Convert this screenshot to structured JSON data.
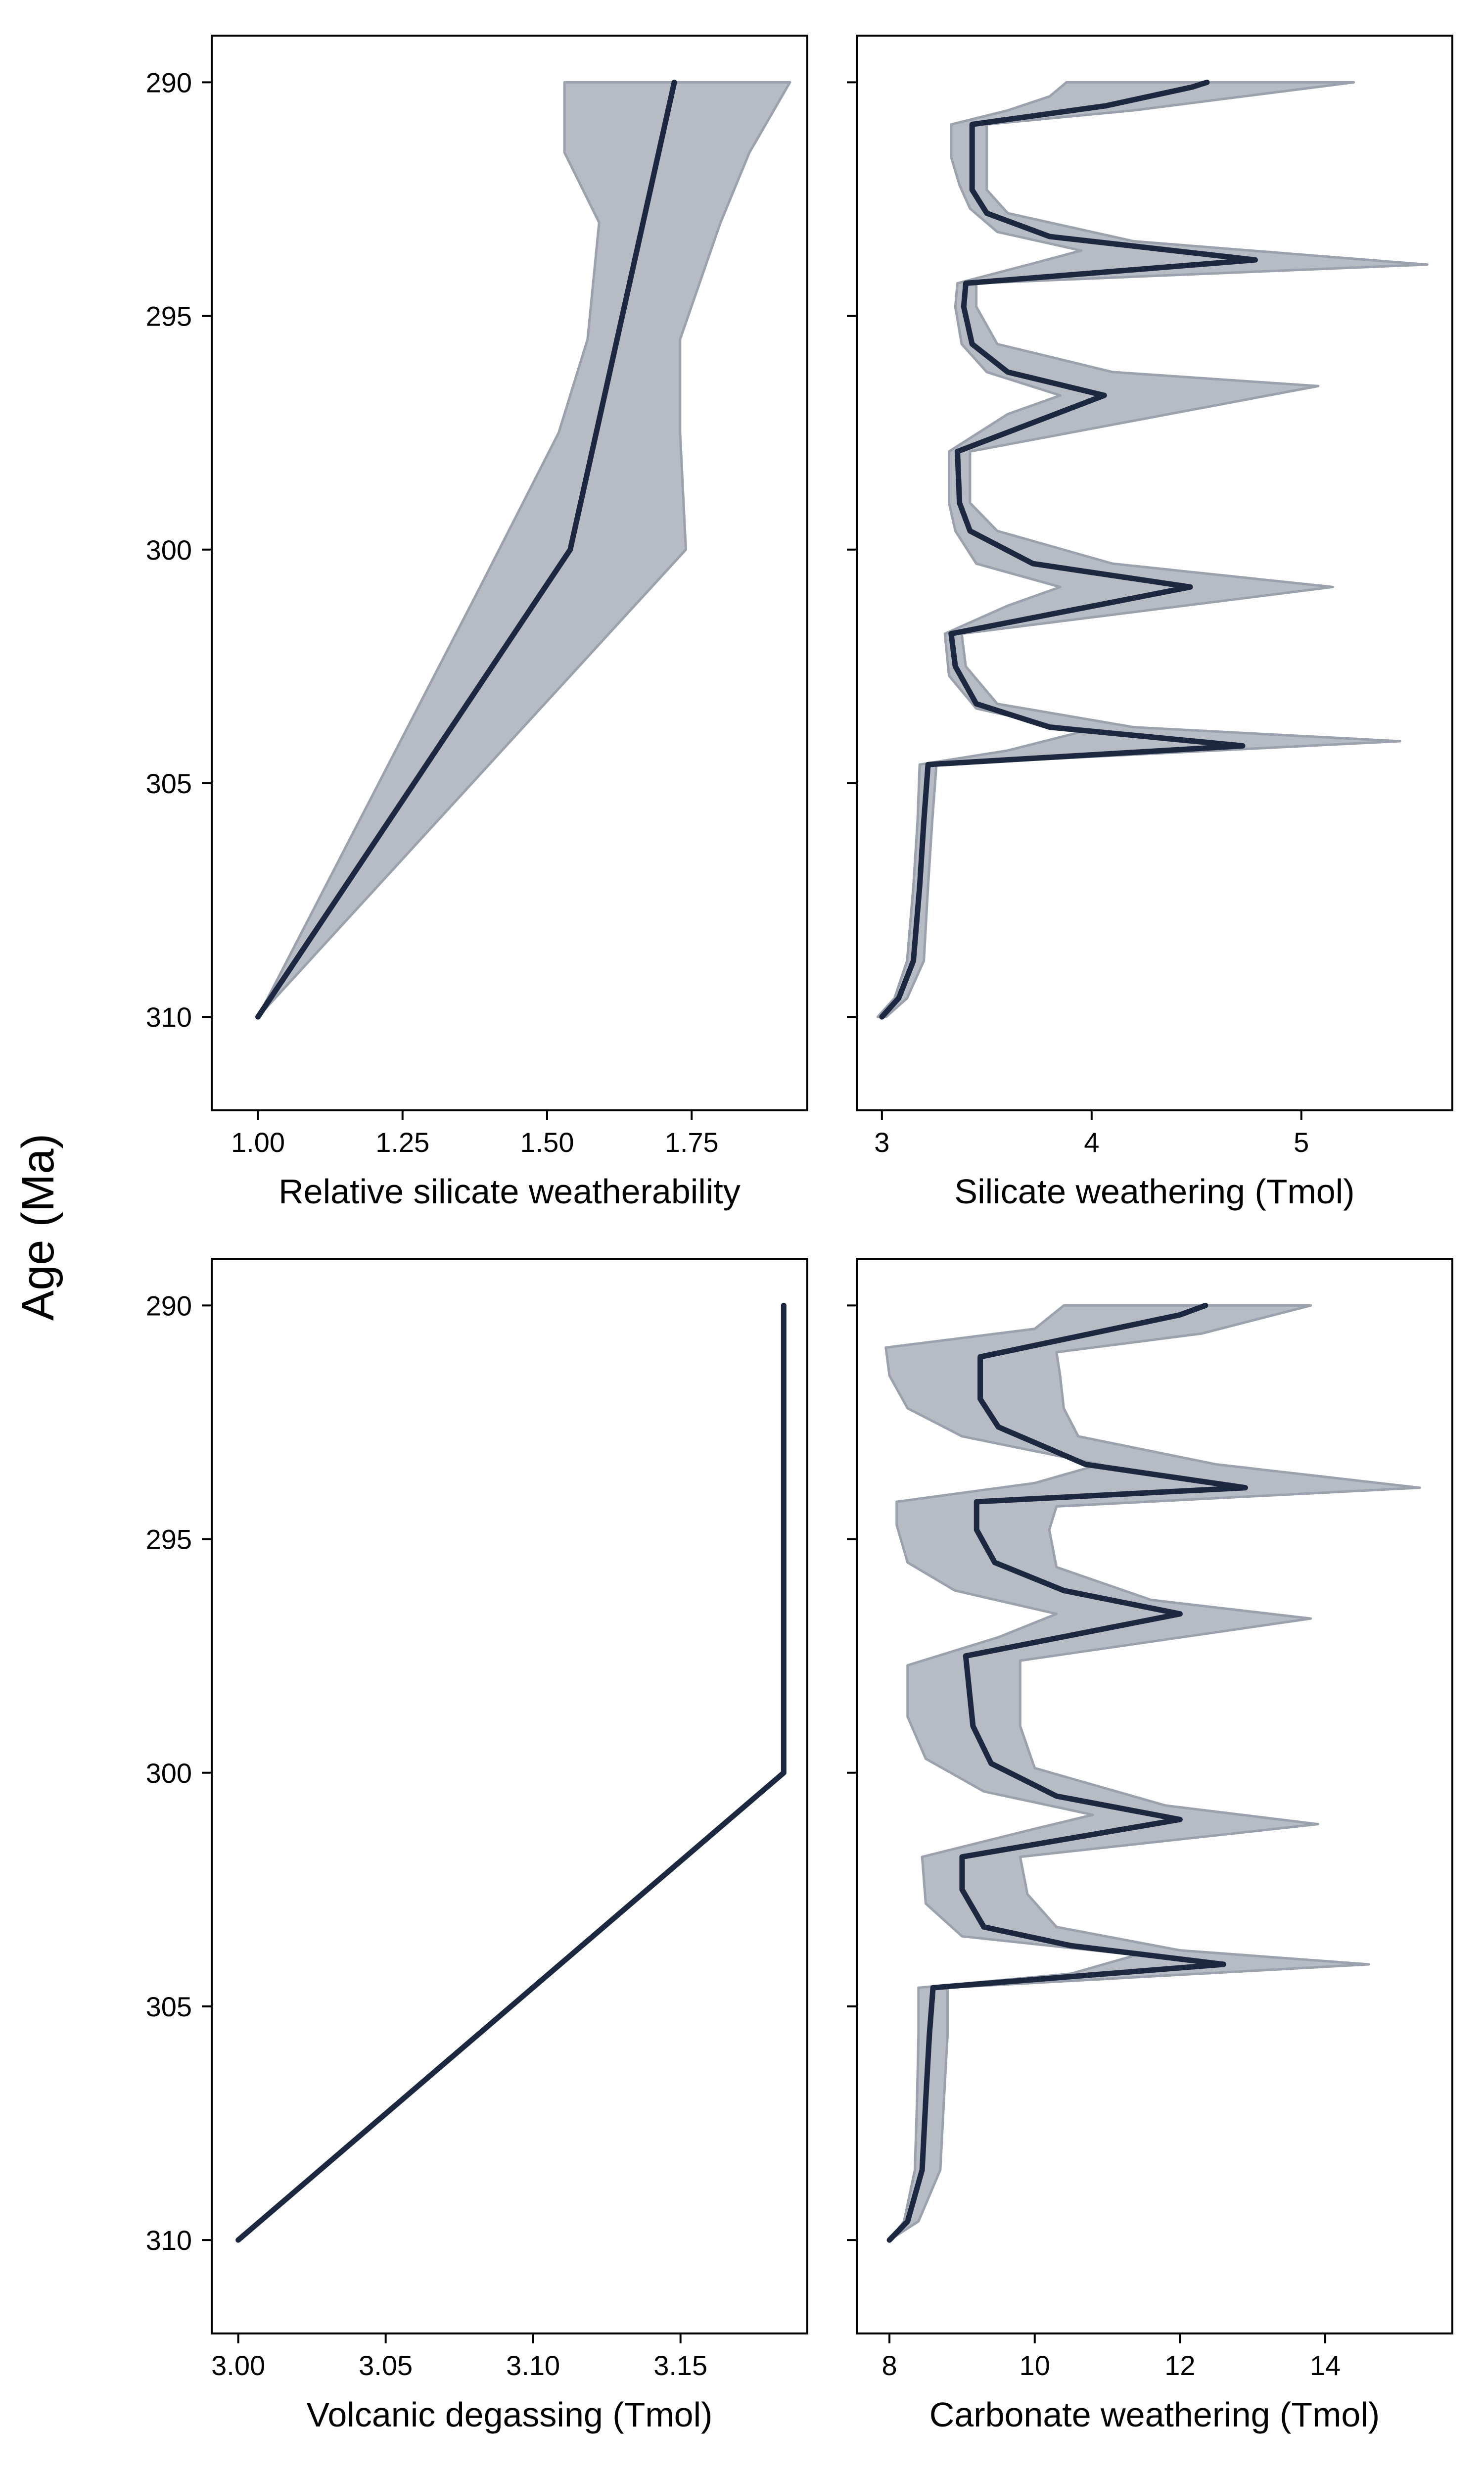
{
  "figure": {
    "shared_ylabel": "Age (Ma)",
    "colors": {
      "line": "#1c2840",
      "band_fill": "#b6bbc4",
      "band_edge": "#9ba1ad",
      "axes": "#000000"
    }
  },
  "chart_data": [
    {
      "type": "line",
      "id": "relative-silicate-weatherability",
      "title": "",
      "xlabel": "Relative silicate weatherability",
      "ylabel": "",
      "xlim": [
        0.92,
        1.95
      ],
      "ylim": [
        312,
        289
      ],
      "xticks": [
        1.0,
        1.25,
        1.5,
        1.75
      ],
      "xtick_labels": [
        "1.00",
        "1.25",
        "1.50",
        "1.75"
      ],
      "yticks": [
        290,
        295,
        300,
        305,
        310
      ],
      "ytick_labels": [
        "290",
        "295",
        "300",
        "305",
        "310"
      ],
      "grid": false,
      "series": [
        {
          "role": "median",
          "points": [
            [
              1.0,
              310
            ],
            [
              1.54,
              300
            ],
            [
              1.72,
              290
            ]
          ]
        },
        {
          "role": "band-lower",
          "points": [
            [
              1.0,
              310
            ],
            [
              1.38,
              300.9
            ],
            [
              1.52,
              297.5
            ],
            [
              1.57,
              295.5
            ],
            [
              1.59,
              293
            ],
            [
              1.53,
              291.5
            ],
            [
              1.53,
              290
            ]
          ]
        },
        {
          "role": "band-upper",
          "points": [
            [
              1.0,
              310
            ],
            [
              1.74,
              300
            ],
            [
              1.73,
              297.5
            ],
            [
              1.73,
              295.5
            ],
            [
              1.8,
              293
            ],
            [
              1.85,
              291.5
            ],
            [
              1.92,
              290
            ]
          ]
        }
      ]
    },
    {
      "type": "line",
      "id": "silicate-weathering",
      "title": "",
      "xlabel": "Silicate weathering (Tmol)",
      "ylabel": "",
      "xlim": [
        2.88,
        5.72
      ],
      "ylim": [
        312,
        289
      ],
      "xticks": [
        3,
        4,
        5
      ],
      "xtick_labels": [
        "3",
        "4",
        "5"
      ],
      "yticks": [
        290,
        295,
        300,
        305,
        310
      ],
      "ytick_labels": [
        "290",
        "295",
        "300",
        "305",
        "310"
      ],
      "grid": false,
      "series": [
        {
          "role": "median",
          "points": [
            [
              3.0,
              310
            ],
            [
              3.08,
              309.6
            ],
            [
              3.15,
              308.8
            ],
            [
              3.18,
              307.2
            ],
            [
              3.2,
              305.8
            ],
            [
              3.22,
              304.6
            ],
            [
              4.72,
              304.2
            ],
            [
              3.8,
              303.8
            ],
            [
              3.45,
              303.3
            ],
            [
              3.35,
              302.5
            ],
            [
              3.33,
              301.8
            ],
            [
              4.47,
              300.8
            ],
            [
              3.72,
              300.3
            ],
            [
              3.42,
              299.6
            ],
            [
              3.37,
              299
            ],
            [
              3.36,
              297.9
            ],
            [
              4.06,
              296.7
            ],
            [
              3.6,
              296.2
            ],
            [
              3.43,
              295.6
            ],
            [
              3.39,
              294.8
            ],
            [
              3.4,
              294.3
            ],
            [
              4.78,
              293.8
            ],
            [
              3.8,
              293.3
            ],
            [
              3.5,
              292.8
            ],
            [
              3.43,
              292.3
            ],
            [
              3.43,
              291.8
            ],
            [
              3.43,
              290.9
            ],
            [
              4.07,
              290.5
            ],
            [
              4.48,
              290.1
            ],
            [
              4.55,
              290
            ]
          ]
        },
        {
          "role": "band-lower",
          "points": [
            [
              2.98,
              310
            ],
            [
              3.06,
              309.6
            ],
            [
              3.12,
              308.8
            ],
            [
              3.15,
              307.2
            ],
            [
              3.17,
              305.8
            ],
            [
              3.18,
              304.6
            ],
            [
              3.6,
              304.3
            ],
            [
              3.95,
              303.9
            ],
            [
              3.45,
              303.4
            ],
            [
              3.32,
              302.7
            ],
            [
              3.3,
              301.8
            ],
            [
              3.6,
              301.2
            ],
            [
              3.85,
              300.8
            ],
            [
              3.45,
              300.3
            ],
            [
              3.35,
              299.6
            ],
            [
              3.32,
              299
            ],
            [
              3.32,
              297.9
            ],
            [
              3.6,
              297.1
            ],
            [
              3.85,
              296.7
            ],
            [
              3.5,
              296.2
            ],
            [
              3.38,
              295.6
            ],
            [
              3.35,
              294.8
            ],
            [
              3.36,
              294.3
            ],
            [
              3.7,
              293.9
            ],
            [
              3.95,
              293.6
            ],
            [
              3.55,
              293.2
            ],
            [
              3.42,
              292.7
            ],
            [
              3.37,
              292.2
            ],
            [
              3.33,
              291.6
            ],
            [
              3.33,
              290.9
            ],
            [
              3.6,
              290.6
            ],
            [
              3.8,
              290.3
            ],
            [
              3.88,
              290
            ]
          ]
        },
        {
          "role": "band-upper",
          "points": [
            [
              3.02,
              310
            ],
            [
              3.12,
              309.6
            ],
            [
              3.2,
              308.8
            ],
            [
              3.22,
              307.2
            ],
            [
              3.24,
              305.8
            ],
            [
              3.26,
              304.6
            ],
            [
              5.47,
              304.1
            ],
            [
              4.2,
              303.8
            ],
            [
              3.55,
              303.3
            ],
            [
              3.4,
              302.5
            ],
            [
              3.38,
              301.8
            ],
            [
              5.15,
              300.8
            ],
            [
              4.1,
              300.3
            ],
            [
              3.55,
              299.6
            ],
            [
              3.42,
              299
            ],
            [
              3.42,
              297.9
            ],
            [
              5.08,
              296.5
            ],
            [
              4.1,
              296.2
            ],
            [
              3.55,
              295.6
            ],
            [
              3.45,
              294.8
            ],
            [
              3.45,
              294.3
            ],
            [
              5.6,
              293.9
            ],
            [
              4.2,
              293.4
            ],
            [
              3.6,
              292.8
            ],
            [
              3.5,
              292.3
            ],
            [
              3.5,
              291.8
            ],
            [
              3.5,
              290.9
            ],
            [
              4.2,
              290.6
            ],
            [
              5.25,
              290
            ],
            [
              4.42,
              290
            ]
          ]
        }
      ]
    },
    {
      "type": "line",
      "id": "volcanic-degassing",
      "title": "",
      "xlabel": "Volcanic degassing (Tmol)",
      "ylabel": "",
      "xlim": [
        2.991,
        3.193
      ],
      "ylim": [
        312,
        289
      ],
      "xticks": [
        3.0,
        3.05,
        3.1,
        3.15
      ],
      "xtick_labels": [
        "3.00",
        "3.05",
        "3.10",
        "3.15"
      ],
      "yticks": [
        290,
        295,
        300,
        305,
        310
      ],
      "ytick_labels": [
        "290",
        "295",
        "300",
        "305",
        "310"
      ],
      "grid": false,
      "series": [
        {
          "role": "median",
          "points": [
            [
              3.0,
              310
            ],
            [
              3.185,
              300
            ],
            [
              3.185,
              290
            ]
          ]
        }
      ]
    },
    {
      "type": "line",
      "id": "carbonate-weathering",
      "title": "",
      "xlabel": "Carbonate weathering (Tmol)",
      "ylabel": "",
      "xlim": [
        7.55,
        15.75
      ],
      "ylim": [
        312,
        289
      ],
      "xticks": [
        8,
        10,
        12,
        14
      ],
      "xtick_labels": [
        "8",
        "10",
        "12",
        "14"
      ],
      "yticks": [
        290,
        295,
        300,
        305,
        310
      ],
      "ytick_labels": [
        "290",
        "295",
        "300",
        "305",
        "310"
      ],
      "grid": false,
      "series": [
        {
          "role": "median",
          "points": [
            [
              8.0,
              310
            ],
            [
              8.25,
              309.6
            ],
            [
              8.45,
              308.5
            ],
            [
              8.5,
              307
            ],
            [
              8.55,
              305.6
            ],
            [
              8.6,
              304.6
            ],
            [
              12.6,
              304.1
            ],
            [
              10.5,
              303.7
            ],
            [
              9.3,
              303.3
            ],
            [
              9.0,
              302.5
            ],
            [
              9.0,
              301.8
            ],
            [
              12.0,
              301
            ],
            [
              10.3,
              300.5
            ],
            [
              9.4,
              299.8
            ],
            [
              9.15,
              299
            ],
            [
              9.05,
              297.5
            ],
            [
              12.0,
              296.6
            ],
            [
              10.4,
              296.1
            ],
            [
              9.45,
              295.5
            ],
            [
              9.2,
              294.8
            ],
            [
              9.2,
              294.2
            ],
            [
              12.9,
              293.9
            ],
            [
              10.7,
              293.4
            ],
            [
              9.5,
              292.6
            ],
            [
              9.25,
              292
            ],
            [
              9.25,
              291.5
            ],
            [
              9.25,
              291.1
            ],
            [
              12.0,
              290.2
            ],
            [
              12.35,
              290
            ]
          ]
        },
        {
          "role": "band-lower",
          "points": [
            [
              8.0,
              310
            ],
            [
              8.2,
              309.6
            ],
            [
              8.35,
              308.5
            ],
            [
              8.38,
              307
            ],
            [
              8.4,
              305.6
            ],
            [
              8.4,
              304.6
            ],
            [
              10.5,
              304.3
            ],
            [
              11.4,
              303.9
            ],
            [
              9.0,
              303.5
            ],
            [
              8.5,
              302.8
            ],
            [
              8.45,
              301.8
            ],
            [
              10.0,
              301.2
            ],
            [
              10.8,
              300.9
            ],
            [
              9.3,
              300.4
            ],
            [
              8.5,
              299.7
            ],
            [
              8.25,
              298.8
            ],
            [
              8.25,
              297.7
            ],
            [
              9.5,
              297.1
            ],
            [
              10.3,
              296.6
            ],
            [
              8.9,
              296.1
            ],
            [
              8.25,
              295.5
            ],
            [
              8.1,
              294.7
            ],
            [
              8.1,
              294.2
            ],
            [
              10.0,
              293.8
            ],
            [
              10.9,
              293.4
            ],
            [
              9.0,
              292.8
            ],
            [
              8.25,
              292.2
            ],
            [
              8.0,
              291.5
            ],
            [
              7.95,
              290.9
            ],
            [
              10.0,
              290.5
            ],
            [
              10.4,
              290
            ]
          ]
        },
        {
          "role": "band-upper",
          "points": [
            [
              8.0,
              310
            ],
            [
              8.4,
              309.6
            ],
            [
              8.7,
              308.5
            ],
            [
              8.75,
              307
            ],
            [
              8.8,
              305.6
            ],
            [
              8.8,
              304.6
            ],
            [
              14.6,
              304.1
            ],
            [
              12.0,
              303.8
            ],
            [
              10.3,
              303.3
            ],
            [
              9.9,
              302.6
            ],
            [
              9.8,
              301.8
            ],
            [
              13.9,
              301.1
            ],
            [
              11.8,
              300.7
            ],
            [
              10.0,
              299.9
            ],
            [
              9.8,
              299
            ],
            [
              9.8,
              297.6
            ],
            [
              13.8,
              296.7
            ],
            [
              11.6,
              296.3
            ],
            [
              10.3,
              295.6
            ],
            [
              10.2,
              294.8
            ],
            [
              10.3,
              294.3
            ],
            [
              15.3,
              293.9
            ],
            [
              12.5,
              293.4
            ],
            [
              10.6,
              292.8
            ],
            [
              10.4,
              292.2
            ],
            [
              10.35,
              291.5
            ],
            [
              10.3,
              291
            ],
            [
              12.3,
              290.6
            ],
            [
              13.8,
              290
            ]
          ]
        }
      ]
    }
  ]
}
